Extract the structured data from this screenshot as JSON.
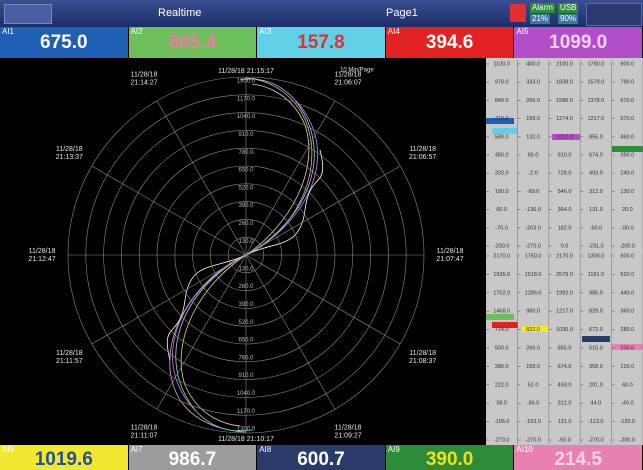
{
  "header": {
    "mode": "Realtime",
    "page": "Page1",
    "status": [
      "Alarm",
      "USB",
      "21%",
      "90%"
    ]
  },
  "top_tiles": [
    {
      "label": "AI1",
      "value": "675.0",
      "bg": "#1f5fb4",
      "fg": "#ffffff"
    },
    {
      "label": "AI2",
      "value": "805.4",
      "bg": "#6cbf5a",
      "fg": "#f27aa6"
    },
    {
      "label": "AI3",
      "value": "157.8",
      "bg": "#5fd0e6",
      "fg": "#e53030"
    },
    {
      "label": "AI4",
      "value": "394.6",
      "bg": "#e02222",
      "fg": "#ffffff"
    },
    {
      "label": "AI5",
      "value": "1099.0",
      "bg": "#b24fc8",
      "fg": "#f2d2f2"
    }
  ],
  "bottom_tiles": [
    {
      "label": "AI6",
      "value": "1019.6",
      "bg": "#f2e830",
      "fg": "#2050a0"
    },
    {
      "label": "AI7",
      "value": "986.7",
      "bg": "#9c9c9c",
      "fg": "#ffffff"
    },
    {
      "label": "AI8",
      "value": "600.7",
      "bg": "#2a3b6a",
      "fg": "#ffffff"
    },
    {
      "label": "AI9",
      "value": "390.0",
      "bg": "#2e8b3a",
      "fg": "#f0e020"
    },
    {
      "label": "AI10",
      "value": "214.5",
      "bg": "#e880b0",
      "fg": "#f8d6e6"
    }
  ],
  "polar": {
    "page_span": "10 Min/Page",
    "time_labels": [
      [
        "11/28/18 21:15:17"
      ],
      [
        "11/28/18",
        "21:06:07"
      ],
      [
        "11/28/18",
        "21:06:57"
      ],
      [
        "11/28/18",
        "21:07:47"
      ],
      [
        "11/28/18",
        "21:08:37"
      ],
      [
        "11/28/18",
        "21:09:27"
      ],
      [
        "11/28/18 21:10:17"
      ],
      [
        "11/28/18",
        "21:11:07"
      ],
      [
        "11/28/18",
        "21:11:57"
      ],
      [
        "11/28/18",
        "21:12:47"
      ],
      [
        "11/28/18",
        "21:13:37"
      ],
      [
        "11/28/18",
        "21:14:27"
      ]
    ],
    "ring_labels": [
      "130.0",
      "260.0",
      "390.0",
      "520.0",
      "650.0",
      "780.0",
      "910.0",
      "1040.0",
      "1170.0",
      "1300.0"
    ]
  },
  "scale_panel": {
    "top": [
      [
        "1100.0",
        "970.0",
        "840.0",
        "710.0",
        "580.0",
        "450.0",
        "320.0",
        "190.0",
        "60.0",
        "-70.0",
        "-200.0"
      ],
      [
        "400.0",
        "333.0",
        "266.0",
        "199.0",
        "132.0",
        "65.0",
        "-2.0",
        "-69.0",
        "-136.0",
        "-203.0",
        "-270.0"
      ],
      [
        "2100.0",
        "1838.0",
        "1586.0",
        "1274.0",
        "1012.0",
        "910.0",
        "728.0",
        "546.0",
        "364.0",
        "182.0",
        "0.0"
      ],
      [
        "1780.0",
        "1579.0",
        "1378.0",
        "1217.0",
        "855.0",
        "674.0",
        "493.0",
        "312.0",
        "131.0",
        "-50.0",
        "-231.0"
      ],
      [
        "900.0",
        "790.0",
        "670.0",
        "570.0",
        "460.0",
        "350.0",
        "240.0",
        "130.0",
        "20.0",
        "-90.0",
        "-200.0"
      ]
    ],
    "bottom": [
      [
        "2170.0",
        "1935.0",
        "1702.0",
        "1468.0",
        "714.0",
        "500.0",
        "386.0",
        "222.0",
        "58.0",
        "-106.0",
        "-270.0"
      ],
      [
        "1750.0",
        "1518.0",
        "1286.0",
        "980.0",
        "822.0",
        "265.0",
        "158.0",
        "51.0",
        "-56.0",
        "-163.0",
        "-270.0"
      ],
      [
        "2170.0",
        "2579.0",
        "1992.0",
        "1217.0",
        "1036.0",
        "855.0",
        "674.0",
        "493.0",
        "312.0",
        "131.0",
        "-50.0"
      ],
      [
        "1300.0",
        "1181.0",
        "985.0",
        "829.0",
        "672.0",
        "515.0",
        "358.0",
        "201.0",
        "44.0",
        "-113.0",
        "-270.0"
      ],
      [
        "600.0",
        "520.0",
        "440.0",
        "360.0",
        "280.0",
        "200.0",
        "120.0",
        "40.0",
        "-40.0",
        "-120.0",
        "-200.0"
      ]
    ]
  }
}
